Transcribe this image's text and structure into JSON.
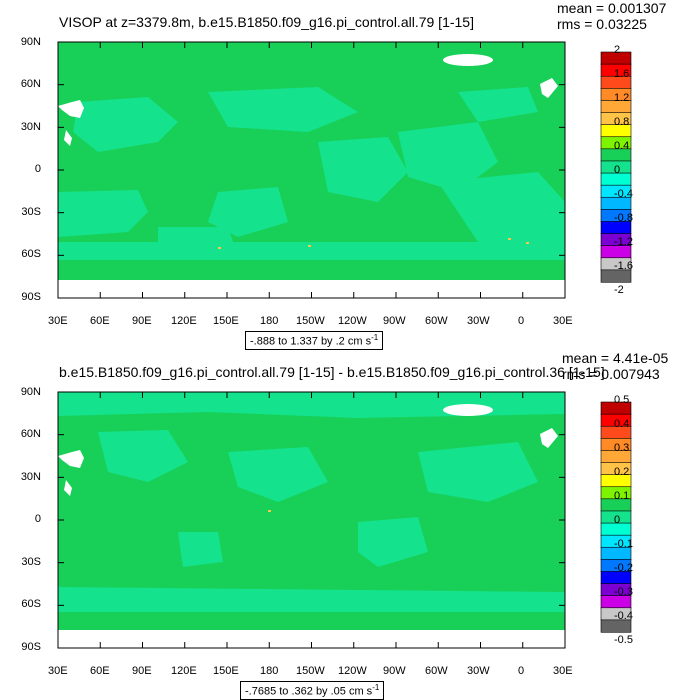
{
  "panels": [
    {
      "title": "VISOP at z=3379.8m, b.e15.B1850.f09_g16.pi_control.all.79 [1-15]",
      "stats": {
        "mean": "mean = 0.001307",
        "rms": "rms = 0.03225"
      },
      "range_text": "-.888 to 1.337 by .2 cm s",
      "range_sup": "-1",
      "colorbar": {
        "labels": [
          "2",
          "1.6",
          "1.2",
          "0.8",
          "0.4",
          "0",
          "-0.4",
          "-0.8",
          "-1.2",
          "-1.6",
          "-2"
        ],
        "colors": [
          "#c00000",
          "#ff0000",
          "#ff4a1c",
          "#ff8a26",
          "#ffa838",
          "#ffc447",
          "#ffff00",
          "#7ef400",
          "#18d058",
          "#14e28c",
          "#00ffd2",
          "#00e6ff",
          "#00b8ff",
          "#0078ff",
          "#0000ff",
          "#7c00d2",
          "#cc00e6",
          "#c8c8c8",
          "#646464"
        ]
      }
    },
    {
      "title": "b.e15.B1850.f09_g16.pi_control.all.79 [1-15] - b.e15.B1850.f09_g16.pi_control.36 [1-15]",
      "stats": {
        "mean": "mean = 4.41e-05",
        "rms": "rms = 0.007943"
      },
      "range_text": "-.7685 to .362 by .05 cm s",
      "range_sup": "-1",
      "colorbar": {
        "labels": [
          "0.5",
          "0.4",
          "0.3",
          "0.2",
          "0.1",
          "0",
          "-0.1",
          "-0.2",
          "-0.3",
          "-0.4",
          "-0.5"
        ],
        "colors": [
          "#c00000",
          "#ff0000",
          "#ff4a1c",
          "#ff8a26",
          "#ffa838",
          "#ffc447",
          "#ffff00",
          "#7ef400",
          "#18d058",
          "#14e28c",
          "#00ffd2",
          "#00e6ff",
          "#00b8ff",
          "#0078ff",
          "#0000ff",
          "#7c00d2",
          "#cc00e6",
          "#c8c8c8",
          "#646464"
        ]
      }
    }
  ],
  "axes": {
    "lat_labels": [
      "90N",
      "60N",
      "30N",
      "0",
      "30S",
      "60S",
      "90S"
    ],
    "lon_labels": [
      "30E",
      "60E",
      "90E",
      "120E",
      "150E",
      "180",
      "150W",
      "120W",
      "90W",
      "60W",
      "30W",
      "0",
      "30E"
    ]
  },
  "colors": {
    "land_green": "#18d058",
    "shallow_cyan": "#14e28c",
    "missing": "#ffffff"
  }
}
